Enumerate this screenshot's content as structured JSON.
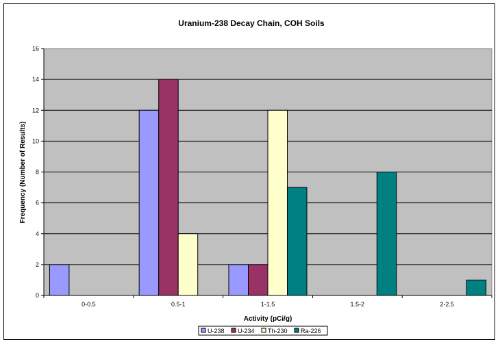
{
  "chart_data": {
    "type": "bar",
    "title": "Uranium-238 Decay Chain, COH Soils",
    "xlabel": "Activity (pCi/g)",
    "ylabel": "Frequency (Number of Results)",
    "categories": [
      "0-0.5",
      "0.5-1",
      "1-1.5",
      "1.5-2",
      "2-2.5"
    ],
    "ylim": [
      0,
      16
    ],
    "yticks": [
      0,
      2,
      4,
      6,
      8,
      10,
      12,
      14,
      16
    ],
    "grid": true,
    "legend_position": "bottom",
    "series": [
      {
        "name": "U-238",
        "color": "#9999ff",
        "values": [
          2,
          12,
          2,
          0,
          0
        ]
      },
      {
        "name": "U-234",
        "color": "#993366",
        "values": [
          0,
          14,
          2,
          0,
          0
        ]
      },
      {
        "name": "Th-230",
        "color": "#ffffcc",
        "values": [
          0,
          4,
          12,
          0,
          0
        ]
      },
      {
        "name": "Ra-226",
        "color": "#008080",
        "values": [
          0,
          0,
          7,
          8,
          1
        ]
      }
    ],
    "plot_background": "#c0c0c0"
  }
}
